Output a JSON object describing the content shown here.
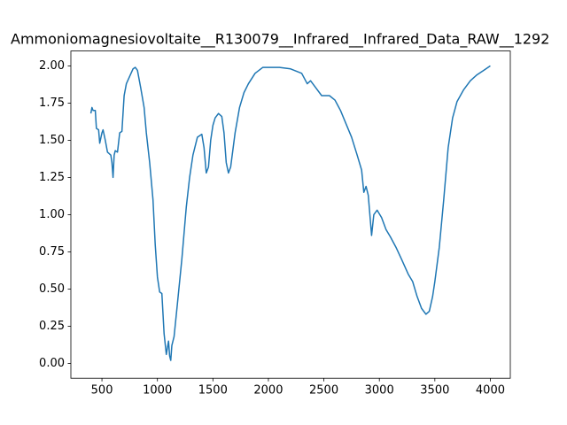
{
  "chart_data": {
    "type": "line",
    "title": "Ammoniomagnesiovoltaite__R130079__Infrared__Infrared_Data_RAW__1292",
    "xlim": [
      220,
      4180
    ],
    "ylim": [
      -0.1,
      2.1
    ],
    "xticks": [
      500,
      1000,
      1500,
      2000,
      2500,
      3000,
      3500,
      4000
    ],
    "yticks": [
      {
        "value": 0,
        "label": "0.00"
      },
      {
        "value": 0.25,
        "label": "0.25"
      },
      {
        "value": 0.5,
        "label": "0.50"
      },
      {
        "value": 0.75,
        "label": "0.75"
      },
      {
        "value": 1,
        "label": "1.00"
      },
      {
        "value": 1.25,
        "label": "1.25"
      },
      {
        "value": 1.5,
        "label": "1.50"
      },
      {
        "value": 1.75,
        "label": "1.75"
      },
      {
        "value": 2,
        "label": "2.00"
      }
    ],
    "grid": false,
    "x": [
      400,
      410,
      420,
      440,
      450,
      470,
      480,
      500,
      510,
      530,
      550,
      580,
      590,
      600,
      610,
      620,
      640,
      660,
      680,
      700,
      720,
      750,
      780,
      800,
      820,
      850,
      880,
      900,
      930,
      960,
      980,
      1000,
      1020,
      1040,
      1060,
      1080,
      1100,
      1110,
      1120,
      1130,
      1150,
      1180,
      1220,
      1260,
      1290,
      1320,
      1360,
      1400,
      1420,
      1440,
      1460,
      1480,
      1500,
      1520,
      1550,
      1580,
      1600,
      1620,
      1640,
      1660,
      1700,
      1740,
      1780,
      1820,
      1880,
      1950,
      2000,
      2100,
      2200,
      2300,
      2350,
      2380,
      2420,
      2480,
      2550,
      2600,
      2650,
      2750,
      2800,
      2840,
      2860,
      2880,
      2900,
      2920,
      2930,
      2950,
      2980,
      3020,
      3060,
      3100,
      3150,
      3200,
      3260,
      3300,
      3340,
      3380,
      3420,
      3450,
      3480,
      3500,
      3540,
      3580,
      3620,
      3660,
      3700,
      3760,
      3820,
      3880,
      3940,
      4000
    ],
    "series": [
      {
        "color": "#1f77b4",
        "values": [
          1.68,
          1.72,
          1.7,
          1.7,
          1.58,
          1.57,
          1.48,
          1.55,
          1.57,
          1.5,
          1.42,
          1.4,
          1.35,
          1.25,
          1.4,
          1.43,
          1.42,
          1.55,
          1.56,
          1.8,
          1.88,
          1.93,
          1.98,
          1.99,
          1.97,
          1.85,
          1.72,
          1.55,
          1.35,
          1.1,
          0.8,
          0.58,
          0.48,
          0.47,
          0.2,
          0.06,
          0.15,
          0.05,
          0.02,
          0.12,
          0.18,
          0.4,
          0.7,
          1.05,
          1.25,
          1.4,
          1.52,
          1.54,
          1.45,
          1.28,
          1.32,
          1.5,
          1.6,
          1.65,
          1.68,
          1.66,
          1.55,
          1.35,
          1.28,
          1.32,
          1.55,
          1.72,
          1.82,
          1.88,
          1.95,
          1.99,
          1.99,
          1.99,
          1.98,
          1.95,
          1.88,
          1.9,
          1.86,
          1.8,
          1.8,
          1.77,
          1.7,
          1.52,
          1.4,
          1.3,
          1.15,
          1.19,
          1.13,
          0.95,
          0.86,
          1.0,
          1.03,
          0.98,
          0.9,
          0.85,
          0.78,
          0.7,
          0.6,
          0.55,
          0.45,
          0.37,
          0.33,
          0.35,
          0.45,
          0.55,
          0.78,
          1.1,
          1.45,
          1.65,
          1.76,
          1.84,
          1.9,
          1.94,
          1.97,
          2.0
        ]
      }
    ]
  }
}
